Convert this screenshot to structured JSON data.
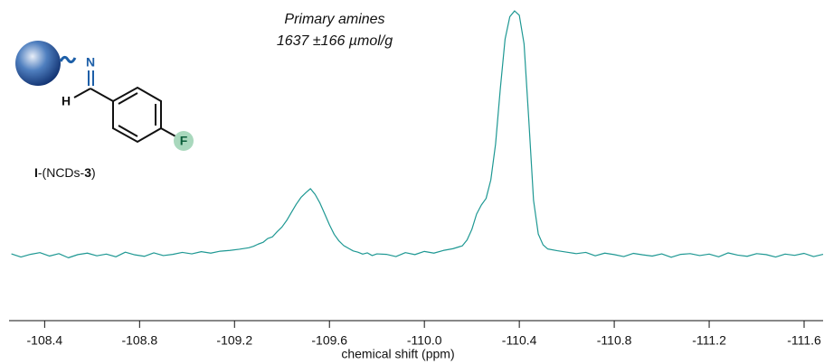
{
  "chart_data": {
    "type": "line",
    "annotations": [
      "Primary amines",
      "1637 ±166 µmol/g"
    ],
    "structure_labels": {
      "n": "N",
      "h": "H",
      "f": "F",
      "compound": [
        "I",
        "-(NCDs-",
        "3",
        ")"
      ]
    },
    "x_label": "chemical shift (ppm)",
    "xlim": [
      -108.25,
      -111.68
    ],
    "ylim": [
      -25,
      101.5
    ],
    "xticks": [
      -108.4,
      -108.8,
      -109.2,
      -109.6,
      {
        "value": -110,
        "label": "-110.0"
      },
      -110.4,
      -110.8,
      -111.2,
      -111.6
    ],
    "series": [
      {
        "color": "#1e9893",
        "x": [
          -108.26,
          -108.3,
          -108.34,
          -108.38,
          -108.42,
          -108.46,
          -108.5,
          -108.54,
          -108.58,
          -108.62,
          -108.66,
          -108.7,
          -108.74,
          -108.78,
          -108.82,
          -108.86,
          -108.9,
          -108.94,
          -108.98,
          -109.02,
          -109.06,
          -109.1,
          -109.14,
          -109.18,
          -109.22,
          -109.26,
          -109.28,
          -109.3,
          -109.32,
          -109.34,
          -109.36,
          -109.38,
          -109.4,
          -109.42,
          -109.44,
          -109.46,
          -109.48,
          -109.5,
          -109.52,
          -109.54,
          -109.56,
          -109.58,
          -109.6,
          -109.62,
          -109.64,
          -109.66,
          -109.68,
          -109.7,
          -109.72,
          -109.74,
          -109.76,
          -109.78,
          -109.8,
          -109.84,
          -109.88,
          -109.92,
          -109.96,
          -110.0,
          -110.04,
          -110.08,
          -110.12,
          -110.16,
          -110.18,
          -110.2,
          -110.22,
          -110.24,
          -110.26,
          -110.28,
          -110.3,
          -110.32,
          -110.34,
          -110.36,
          -110.38,
          -110.4,
          -110.42,
          -110.44,
          -110.46,
          -110.48,
          -110.5,
          -110.52,
          -110.56,
          -110.6,
          -110.64,
          -110.68,
          -110.72,
          -110.76,
          -110.8,
          -110.84,
          -110.88,
          -110.92,
          -110.96,
          -111.0,
          -111.04,
          -111.08,
          -111.12,
          -111.16,
          -111.2,
          -111.24,
          -111.28,
          -111.32,
          -111.36,
          -111.4,
          -111.44,
          -111.48,
          -111.52,
          -111.56,
          -111.6,
          -111.64,
          -111.68
        ],
        "values": [
          0.5,
          -0.8,
          0.3,
          1.0,
          -0.4,
          0.6,
          -1.1,
          0.2,
          0.8,
          -0.3,
          0.4,
          -0.7,
          1.2,
          0.1,
          -0.5,
          0.9,
          -0.2,
          0.3,
          1.1,
          0.5,
          1.4,
          0.8,
          1.6,
          1.9,
          2.4,
          3.0,
          3.6,
          4.5,
          5.2,
          6.8,
          7.5,
          9.6,
          11.5,
          14.2,
          17.5,
          20.8,
          23.6,
          25.5,
          27.2,
          24.8,
          21.3,
          16.9,
          12.4,
          8.5,
          5.8,
          3.9,
          2.8,
          1.7,
          1.2,
          0.4,
          0.9,
          -0.2,
          0.5,
          0.3,
          -0.6,
          1.0,
          0.2,
          1.5,
          0.8,
          1.9,
          2.6,
          3.8,
          6.2,
          10.5,
          16.8,
          20.5,
          23.2,
          30.8,
          45.5,
          68.2,
          88.4,
          97.6,
          100.0,
          98.2,
          86.5,
          55.3,
          22.4,
          8.6,
          4.2,
          2.5,
          1.8,
          1.2,
          0.6,
          1.1,
          -0.3,
          0.8,
          0.2,
          -0.6,
          0.7,
          0.1,
          -0.4,
          0.5,
          -0.9,
          0.3,
          0.6,
          -0.2,
          0.4,
          -0.7,
          0.9,
          0.0,
          -0.5,
          0.6,
          0.2,
          -0.8,
          0.4,
          -0.1,
          0.7,
          -0.6,
          0.3
        ]
      }
    ]
  }
}
